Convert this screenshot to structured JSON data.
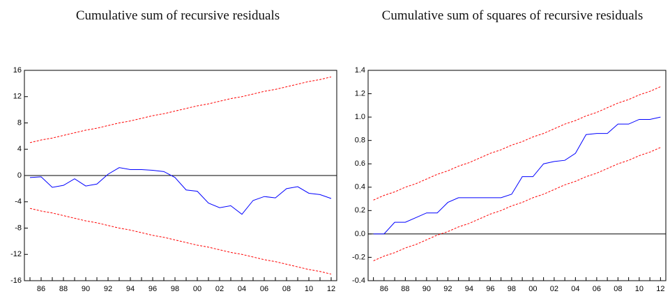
{
  "chart_data": [
    {
      "type": "line",
      "title": "Cumulative sum of recursive residuals",
      "categories": [
        null,
        "86",
        null,
        "88",
        null,
        "90",
        null,
        "92",
        null,
        "94",
        null,
        "96",
        null,
        "98",
        null,
        "00",
        null,
        "02",
        null,
        "04",
        null,
        "06",
        null,
        "08",
        null,
        "10",
        null,
        "12"
      ],
      "series": [
        {
          "color": "#0000ff",
          "dashed": false,
          "values": [
            -0.3,
            -0.2,
            -1.8,
            -1.5,
            -0.5,
            -1.6,
            -1.3,
            0.2,
            1.2,
            0.9,
            0.9,
            0.8,
            0.6,
            -0.3,
            -2.2,
            -2.4,
            -4.2,
            -4.9,
            -4.6,
            -5.9,
            -3.8,
            -3.2,
            -3.4,
            -2.0,
            -1.7,
            -2.7,
            -2.9,
            -3.5
          ]
        },
        {
          "color": "#ff0000",
          "dashed": true,
          "values": [
            5.0,
            5.4,
            5.7,
            6.1,
            6.5,
            6.9,
            7.2,
            7.6,
            8.0,
            8.3,
            8.7,
            9.1,
            9.4,
            9.8,
            10.2,
            10.6,
            10.9,
            11.3,
            11.7,
            12.0,
            12.4,
            12.8,
            13.1,
            13.5,
            13.9,
            14.3,
            14.6,
            15.0
          ]
        },
        {
          "color": "#ff0000",
          "dashed": true,
          "values": [
            -5.0,
            -5.4,
            -5.7,
            -6.1,
            -6.5,
            -6.9,
            -7.2,
            -7.6,
            -8.0,
            -8.3,
            -8.7,
            -9.1,
            -9.4,
            -9.8,
            -10.2,
            -10.6,
            -10.9,
            -11.3,
            -11.7,
            -12.0,
            -12.4,
            -12.8,
            -13.1,
            -13.5,
            -13.9,
            -14.3,
            -14.6,
            -15.0
          ]
        }
      ],
      "ylim": [
        -16,
        16
      ],
      "yticks": [
        -16,
        -12,
        -8,
        -4,
        0,
        4,
        8,
        12,
        16
      ],
      "zero_line": true
    },
    {
      "type": "line",
      "title": "Cumulative sum of squares of recursive residuals",
      "categories": [
        null,
        "86",
        null,
        "88",
        null,
        "90",
        null,
        "92",
        null,
        "94",
        null,
        "96",
        null,
        "98",
        null,
        "00",
        null,
        "02",
        null,
        "04",
        null,
        "06",
        null,
        "08",
        null,
        "10",
        null,
        "12"
      ],
      "series": [
        {
          "color": "#0000ff",
          "dashed": false,
          "values": [
            0,
            0,
            0.1,
            0.1,
            0.14,
            0.18,
            0.18,
            0.27,
            0.31,
            0.31,
            0.31,
            0.31,
            0.31,
            0.34,
            0.49,
            0.49,
            0.6,
            0.62,
            0.63,
            0.69,
            0.85,
            0.86,
            0.86,
            0.94,
            0.94,
            0.98,
            0.98,
            1.0
          ]
        },
        {
          "color": "#ff0000",
          "dashed": true,
          "values": [
            0.29,
            0.33,
            0.36,
            0.4,
            0.43,
            0.47,
            0.51,
            0.54,
            0.58,
            0.61,
            0.65,
            0.69,
            0.72,
            0.76,
            0.79,
            0.83,
            0.86,
            0.9,
            0.94,
            0.97,
            1.01,
            1.04,
            1.08,
            1.12,
            1.15,
            1.19,
            1.22,
            1.26
          ]
        },
        {
          "color": "#ff0000",
          "dashed": true,
          "values": [
            -0.23,
            -0.19,
            -0.16,
            -0.12,
            -0.09,
            -0.05,
            -0.01,
            0.02,
            0.06,
            0.09,
            0.13,
            0.17,
            0.2,
            0.24,
            0.27,
            0.31,
            0.34,
            0.38,
            0.42,
            0.45,
            0.49,
            0.52,
            0.56,
            0.6,
            0.63,
            0.67,
            0.7,
            0.74
          ]
        }
      ],
      "ylim": [
        -0.4,
        1.4
      ],
      "yticks": [
        -0.4,
        -0.2,
        {
          "value": 0,
          "label": "0.0"
        },
        0.2,
        0.4,
        0.6,
        0.8,
        {
          "value": 1,
          "label": "1.0"
        },
        1.2,
        1.4
      ],
      "zero_line": true
    }
  ]
}
